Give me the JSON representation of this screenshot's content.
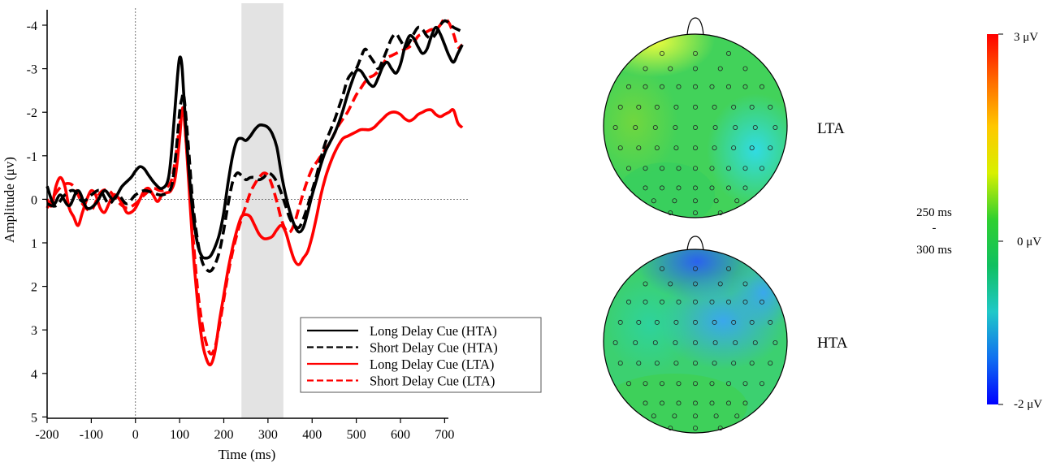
{
  "chart_data": [
    {
      "type": "line",
      "title": "",
      "xlabel": "Time (ms)",
      "ylabel": "Amplitude (μv)",
      "xlim": [
        -200,
        760
      ],
      "ylim": [
        5,
        -4.3
      ],
      "y_inverted": true,
      "xticks": [
        -200,
        -100,
        0,
        100,
        200,
        300,
        400,
        500,
        600,
        700
      ],
      "yticks": [
        -4,
        -3,
        -2,
        -1,
        0,
        1,
        2,
        3,
        4,
        5
      ],
      "shaded_window": [
        240,
        335
      ],
      "legend_position": "bottom-right",
      "series": [
        {
          "name": "Long Delay Cue (HTA)",
          "color": "#000000",
          "dash": "solid",
          "x": [
            -200,
            -185,
            -170,
            -150,
            -130,
            -110,
            -90,
            -70,
            -50,
            -30,
            -10,
            0,
            10,
            20,
            30,
            45,
            60,
            75,
            85,
            95,
            100,
            105,
            110,
            120,
            130,
            140,
            150,
            160,
            170,
            180,
            190,
            200,
            210,
            220,
            230,
            240,
            250,
            260,
            270,
            280,
            290,
            300,
            310,
            320,
            330,
            340,
            350,
            360,
            370,
            380,
            390,
            400,
            410,
            420,
            430,
            440,
            450,
            460,
            470,
            480,
            490,
            500,
            510,
            520,
            530,
            540,
            550,
            560,
            570,
            580,
            590,
            600,
            610,
            620,
            630,
            640,
            650,
            660,
            670,
            680,
            690,
            700,
            710,
            720,
            730,
            740
          ],
          "y": [
            -0.3,
            0.1,
            -0.1,
            0.15,
            -0.2,
            0.2,
            0.1,
            -0.2,
            0,
            -0.3,
            -0.5,
            -0.65,
            -0.75,
            -0.7,
            -0.55,
            -0.35,
            -0.25,
            -0.5,
            -1.5,
            -2.8,
            -3.25,
            -3.1,
            -2.3,
            -0.8,
            0.3,
            1,
            1.3,
            1.35,
            1.3,
            1.1,
            0.8,
            0.3,
            -0.4,
            -1,
            -1.35,
            -1.4,
            -1.35,
            -1.45,
            -1.6,
            -1.7,
            -1.7,
            -1.65,
            -1.5,
            -1.2,
            -0.6,
            -0.1,
            0.3,
            0.6,
            0.75,
            0.65,
            0.3,
            -0.1,
            -0.45,
            -0.8,
            -1.1,
            -1.3,
            -1.5,
            -1.75,
            -2.05,
            -2.4,
            -2.7,
            -2.95,
            -2.95,
            -2.8,
            -2.65,
            -2.6,
            -2.8,
            -3.05,
            -3.15,
            -3.0,
            -2.9,
            -3.1,
            -3.5,
            -3.75,
            -3.7,
            -3.5,
            -3.35,
            -3.45,
            -3.75,
            -3.95,
            -3.8,
            -3.55,
            -3.3,
            -3.15,
            -3.35,
            -3.55
          ]
        },
        {
          "name": "Short Delay Cue (HTA)",
          "color": "#000000",
          "dash": "dashed",
          "x": [
            -200,
            -180,
            -160,
            -140,
            -120,
            -100,
            -80,
            -60,
            -40,
            -20,
            0,
            20,
            40,
            60,
            80,
            90,
            100,
            105,
            110,
            120,
            130,
            140,
            150,
            160,
            170,
            180,
            190,
            200,
            210,
            220,
            230,
            240,
            250,
            260,
            270,
            280,
            290,
            300,
            310,
            320,
            330,
            340,
            350,
            360,
            370,
            380,
            390,
            400,
            410,
            420,
            430,
            440,
            450,
            460,
            470,
            480,
            490,
            500,
            510,
            520,
            530,
            540,
            550,
            560,
            570,
            580,
            590,
            600,
            610,
            620,
            630,
            640,
            650,
            660,
            670,
            680,
            690,
            700,
            710,
            720,
            730,
            740
          ],
          "y": [
            0.1,
            0.15,
            -0.1,
            -0.2,
            0.05,
            -0.1,
            -0.2,
            0.1,
            -0.1,
            0.1,
            -0.1,
            -0.2,
            -0.15,
            -0.1,
            -0.25,
            -0.9,
            -2.0,
            -2.3,
            -2.35,
            -1.2,
            0.1,
            0.9,
            1.4,
            1.6,
            1.65,
            1.5,
            1.2,
            0.7,
            0.1,
            -0.4,
            -0.6,
            -0.55,
            -0.45,
            -0.5,
            -0.5,
            -0.45,
            -0.5,
            -0.6,
            -0.55,
            -0.4,
            -0.15,
            0.15,
            0.45,
            0.6,
            0.65,
            0.45,
            0.15,
            -0.2,
            -0.55,
            -0.95,
            -1.3,
            -1.55,
            -1.8,
            -2.1,
            -2.4,
            -2.75,
            -2.9,
            -3.0,
            -3.25,
            -3.45,
            -3.3,
            -3.15,
            -3.0,
            -3.2,
            -3.45,
            -3.7,
            -3.8,
            -3.65,
            -3.5,
            -3.6,
            -3.8,
            -3.95,
            -3.9,
            -3.75,
            -3.7,
            -3.8,
            -4.0,
            -4.1,
            -4.05,
            -3.95,
            -3.9,
            -3.85
          ]
        },
        {
          "name": "Long Delay Cue (LTA)",
          "color": "#ff0000",
          "dash": "solid",
          "x": [
            -200,
            -190,
            -180,
            -170,
            -160,
            -150,
            -140,
            -130,
            -120,
            -110,
            -100,
            -90,
            -80,
            -70,
            -60,
            -50,
            -40,
            -30,
            -20,
            -10,
            0,
            10,
            20,
            30,
            40,
            50,
            60,
            70,
            80,
            90,
            100,
            105,
            110,
            120,
            130,
            140,
            150,
            160,
            170,
            180,
            190,
            200,
            210,
            220,
            230,
            240,
            250,
            260,
            270,
            280,
            290,
            300,
            310,
            320,
            330,
            340,
            350,
            360,
            370,
            380,
            390,
            400,
            410,
            420,
            430,
            440,
            450,
            460,
            470,
            480,
            490,
            500,
            510,
            520,
            530,
            540,
            550,
            560,
            570,
            580,
            590,
            600,
            610,
            620,
            630,
            640,
            650,
            660,
            670,
            680,
            690,
            700,
            710,
            720,
            730,
            740
          ],
          "y": [
            0,
            0.15,
            -0.3,
            -0.5,
            -0.3,
            0.2,
            0.4,
            0.6,
            0.3,
            0,
            -0.2,
            -0.1,
            0.2,
            0.3,
            0.1,
            -0.1,
            -0.05,
            0.1,
            0.3,
            0.3,
            0.2,
            0,
            -0.2,
            -0.25,
            -0.1,
            0.05,
            -0.1,
            -0.15,
            -0.2,
            -0.5,
            -1.4,
            -2.0,
            -1.95,
            -0.5,
            1.1,
            2.3,
            3.2,
            3.65,
            3.8,
            3.5,
            2.8,
            2.2,
            1.6,
            1.1,
            0.7,
            0.4,
            0.35,
            0.4,
            0.6,
            0.8,
            0.9,
            0.9,
            0.85,
            0.7,
            0.6,
            0.75,
            1.1,
            1.4,
            1.5,
            1.35,
            1.2,
            0.85,
            0.4,
            -0.1,
            -0.5,
            -0.8,
            -1.05,
            -1.25,
            -1.4,
            -1.45,
            -1.5,
            -1.55,
            -1.6,
            -1.6,
            -1.6,
            -1.65,
            -1.75,
            -1.85,
            -1.95,
            -2.0,
            -2.0,
            -1.95,
            -1.85,
            -1.8,
            -1.85,
            -1.95,
            -2.0,
            -2.05,
            -2.05,
            -1.95,
            -1.9,
            -1.95,
            -2.0,
            -2.05,
            -1.75,
            -1.65
          ]
        },
        {
          "name": "Short Delay Cue (LTA)",
          "color": "#ff0000",
          "dash": "dashed",
          "x": [
            -200,
            -180,
            -160,
            -140,
            -120,
            -100,
            -80,
            -60,
            -40,
            -20,
            0,
            20,
            40,
            60,
            80,
            90,
            100,
            105,
            110,
            120,
            130,
            140,
            150,
            160,
            170,
            180,
            190,
            200,
            210,
            220,
            230,
            240,
            250,
            260,
            270,
            280,
            290,
            300,
            310,
            320,
            330,
            340,
            350,
            360,
            370,
            380,
            390,
            400,
            410,
            420,
            430,
            440,
            450,
            460,
            470,
            480,
            490,
            500,
            510,
            520,
            530,
            540,
            550,
            560,
            570,
            580,
            590,
            600,
            610,
            620,
            630,
            640,
            650,
            660,
            670,
            680,
            690,
            700,
            710,
            720,
            730,
            740
          ],
          "y": [
            0.2,
            -0.15,
            -0.35,
            -0.3,
            0.1,
            0.25,
            -0.15,
            -0.2,
            0.05,
            0.2,
            0.1,
            -0.1,
            -0.25,
            -0.2,
            -0.4,
            -0.9,
            -1.7,
            -2.0,
            -1.9,
            -0.6,
            0.8,
            2.0,
            2.8,
            3.3,
            3.55,
            3.4,
            2.9,
            2.3,
            1.7,
            1.2,
            0.8,
            0.45,
            0.15,
            -0.15,
            -0.35,
            -0.5,
            -0.6,
            -0.55,
            -0.3,
            0.05,
            0.45,
            0.7,
            0.75,
            0.55,
            0.2,
            -0.15,
            -0.45,
            -0.7,
            -0.85,
            -1.0,
            -1.15,
            -1.3,
            -1.5,
            -1.7,
            -1.85,
            -2.0,
            -2.2,
            -2.4,
            -2.55,
            -2.7,
            -2.8,
            -2.85,
            -2.95,
            -3.1,
            -3.25,
            -3.3,
            -3.35,
            -3.4,
            -3.45,
            -3.5,
            -3.6,
            -3.75,
            -3.8,
            -3.85,
            -3.9,
            -3.9,
            -4.0,
            -4.15,
            -4.05,
            -3.8,
            -3.5,
            -3.55
          ]
        }
      ]
    },
    {
      "type": "topomap",
      "time_window": [
        "250 ms",
        "300 ms"
      ],
      "time_window_separator": "-",
      "maps": [
        {
          "label": "LTA",
          "dominant": "green",
          "blobs": [
            {
              "where": "front-left",
              "color": "#ffff40"
            },
            {
              "where": "right-center",
              "color": "#38e0e8"
            },
            {
              "where": "left-center",
              "color": "#40c860"
            }
          ]
        },
        {
          "label": "HTA",
          "dominant": "cyan-green",
          "blobs": [
            {
              "where": "front-center",
              "color": "#2f72f0"
            },
            {
              "where": "right-front",
              "color": "#3690f2"
            },
            {
              "where": "center",
              "color": "#38b8f0"
            }
          ]
        }
      ],
      "colorbar": {
        "max_label": "3 μV",
        "mid_label": "0 μV",
        "min_label": "-2 μV",
        "max": 3,
        "min": -2,
        "colors": [
          "#ff0000",
          "#ff6a00",
          "#ffc800",
          "#d8f000",
          "#30d030",
          "#10c060",
          "#20c8c8",
          "#1070f0",
          "#0000ff"
        ]
      }
    }
  ]
}
